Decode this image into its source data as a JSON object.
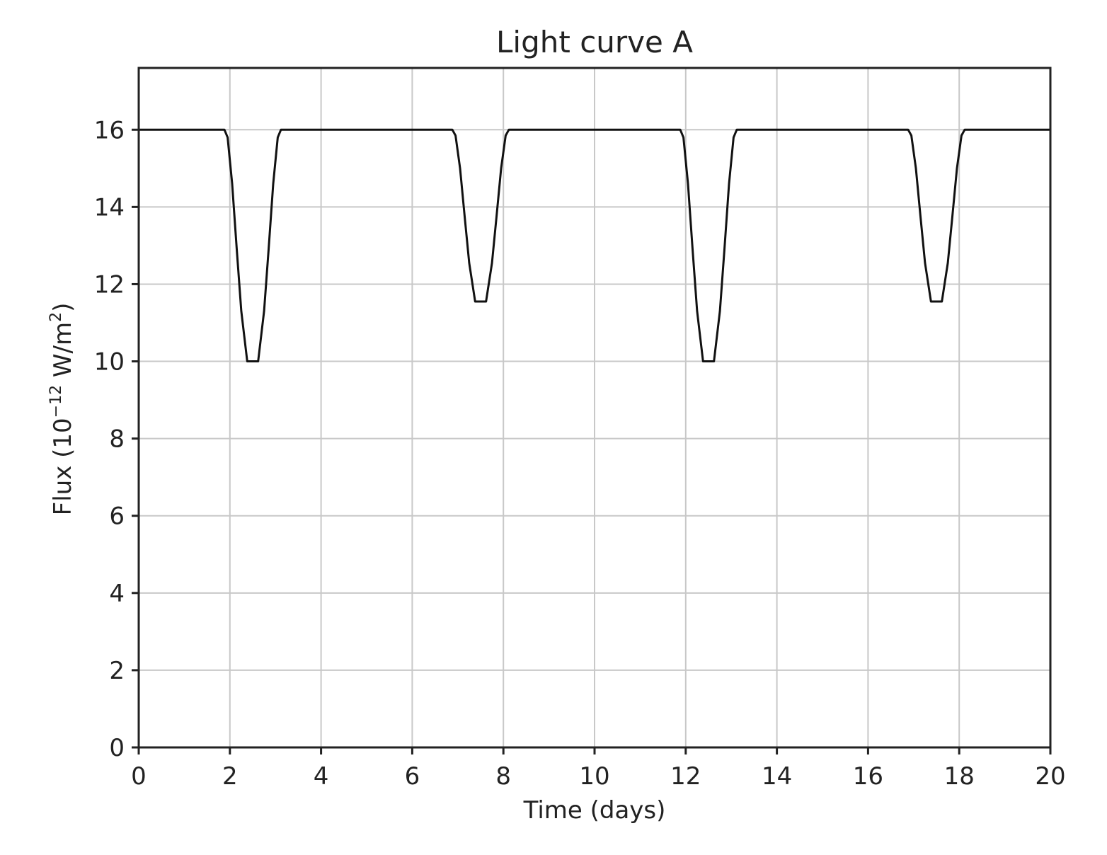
{
  "chart_data": {
    "type": "line",
    "title": "Light curve A",
    "xlabel": "Time (days)",
    "ylabel_main": "Flux (10",
    "ylabel_sup1": "−12",
    "ylabel_mid": " W/m",
    "ylabel_sup2": "2",
    "ylabel_end": ")",
    "xlim": [
      0,
      20
    ],
    "ylim": [
      0,
      17.6
    ],
    "x_ticks": [
      0,
      2,
      4,
      6,
      8,
      10,
      12,
      14,
      16,
      18,
      20
    ],
    "y_ticks": [
      0,
      2,
      4,
      6,
      8,
      10,
      12,
      14,
      16
    ],
    "x_tick_labels": [
      "0",
      "2",
      "4",
      "6",
      "8",
      "10",
      "12",
      "14",
      "16",
      "18",
      "20"
    ],
    "y_tick_labels": [
      "0",
      "2",
      "4",
      "6",
      "8",
      "10",
      "12",
      "14",
      "16"
    ],
    "grid": true,
    "series": [
      {
        "color": "#111111",
        "x": [
          0,
          1.88,
          1.95,
          2.05,
          2.15,
          2.25,
          2.38,
          2.62,
          2.75,
          2.85,
          2.95,
          3.05,
          3.12,
          6.88,
          6.95,
          7.05,
          7.15,
          7.25,
          7.38,
          7.62,
          7.75,
          7.85,
          7.95,
          8.05,
          8.12,
          11.88,
          11.95,
          12.05,
          12.15,
          12.25,
          12.38,
          12.62,
          12.75,
          12.85,
          12.95,
          13.05,
          13.12,
          16.88,
          16.95,
          17.05,
          17.15,
          17.25,
          17.38,
          17.62,
          17.75,
          17.85,
          17.95,
          18.05,
          18.12,
          20
        ],
        "y": [
          16,
          16,
          15.8,
          14.6,
          12.9,
          11.3,
          10,
          10,
          11.3,
          12.9,
          14.6,
          15.8,
          16,
          16,
          15.85,
          15.0,
          13.75,
          12.55,
          11.55,
          11.55,
          12.55,
          13.75,
          15.0,
          15.85,
          16,
          16,
          15.8,
          14.6,
          12.9,
          11.3,
          10,
          10,
          11.3,
          12.9,
          14.6,
          15.8,
          16,
          16,
          15.85,
          15.0,
          13.75,
          12.55,
          11.55,
          11.55,
          12.55,
          13.75,
          15.0,
          15.85,
          16,
          16
        ]
      }
    ]
  }
}
